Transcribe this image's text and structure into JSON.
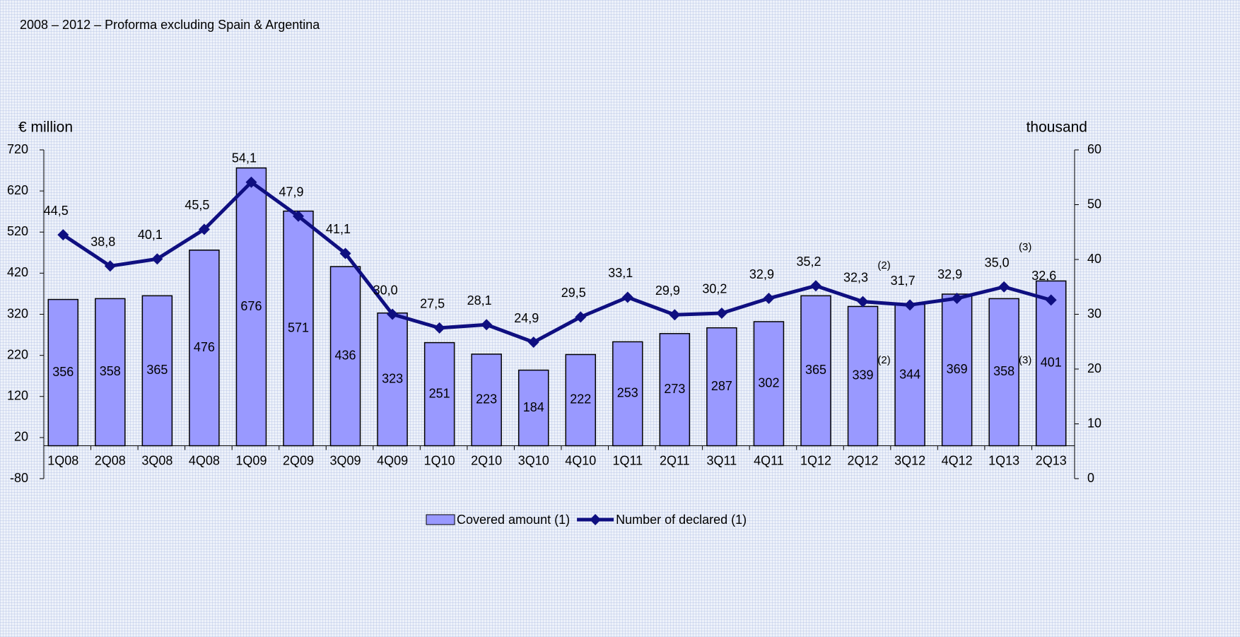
{
  "chart_data": {
    "type": "bar_line",
    "title": "2008 – 2012 – Proforma excluding Spain & Argentina",
    "y_label": "€ million",
    "y2_label": "thousand",
    "categories": [
      "1Q08",
      "2Q08",
      "3Q08",
      "4Q08",
      "1Q09",
      "2Q09",
      "3Q09",
      "4Q09",
      "1Q10",
      "2Q10",
      "3Q10",
      "4Q10",
      "1Q11",
      "2Q11",
      "3Q11",
      "4Q11",
      "1Q12",
      "2Q12",
      "3Q12",
      "4Q12",
      "1Q13",
      "2Q13"
    ],
    "series": [
      {
        "name": "Covered amount (1)",
        "type": "bar",
        "color": "#9999ff",
        "values": [
          356,
          358,
          365,
          476,
          676,
          571,
          436,
          323,
          251,
          223,
          184,
          222,
          253,
          273,
          287,
          302,
          365,
          339,
          344,
          369,
          358,
          401
        ]
      },
      {
        "name": "Number of declared (1)",
        "type": "line",
        "axis": "y2",
        "color": "#0f0f80",
        "values": [
          44.5,
          38.8,
          40.1,
          45.5,
          54.1,
          47.9,
          41.1,
          30.0,
          27.5,
          28.1,
          24.9,
          29.5,
          33.1,
          29.9,
          30.2,
          32.9,
          35.2,
          32.3,
          31.7,
          32.9,
          35.0,
          32.6
        ],
        "value_labels": [
          "44,5",
          "38,8",
          "40,1",
          "45,5",
          "54,1",
          "47,9",
          "41,1",
          "30,0",
          "27,5",
          "28,1",
          "24,9",
          "29,5",
          "33,1",
          "29,9",
          "30,2",
          "32,9",
          "35,2",
          "32,3",
          "31,7",
          "32,9",
          "35,0",
          "32,6"
        ]
      }
    ],
    "annotations": [
      "(2)",
      "(2)",
      "(3)",
      "(3)"
    ],
    "ylim": [
      -80,
      720
    ],
    "yticks": [
      -80,
      20,
      120,
      220,
      320,
      420,
      520,
      620,
      720
    ],
    "y2lim": [
      0,
      60
    ],
    "y2ticks": [
      0,
      10,
      20,
      30,
      40,
      50,
      60
    ],
    "grid": false,
    "legend": "bottom"
  }
}
